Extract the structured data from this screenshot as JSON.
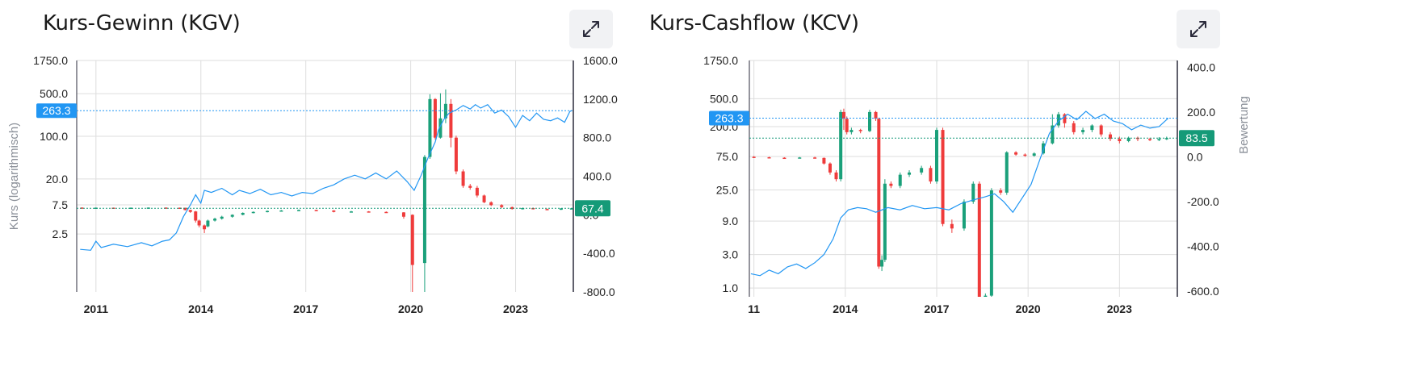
{
  "colors": {
    "up": "#1aa07a",
    "down": "#ef3b3b",
    "valuation_line": "#2196f3",
    "price_badge": "#2196f3",
    "valuation_badge": "#159a78",
    "grid": "#dedede",
    "axis": "#2b2b3b"
  },
  "icons": {
    "expand": "expand-arrows-icon"
  },
  "chart_data": [
    {
      "panel_title": "Kurs-Gewinn (KGV)",
      "type": "candlestick+line",
      "left_axis_title": "Kurs (logarithmisch)",
      "right_axis_title": "",
      "left_scale": "log",
      "left_ticks": [
        "1750.0",
        "500.0",
        "100.0",
        "20.0",
        "7.5",
        "2.5"
      ],
      "left_tick_values": [
        1750,
        500,
        100,
        20,
        7.5,
        2.5
      ],
      "left_range": [
        0.28,
        1750
      ],
      "right_ticks": [
        "1600.0",
        "1200.0",
        "800.0",
        "400.0",
        "0.0",
        "-400.0",
        "-800.0"
      ],
      "right_tick_values": [
        1600,
        1200,
        800,
        400,
        0,
        -400,
        -800
      ],
      "right_range": [
        -800,
        1600
      ],
      "x_ticks": [
        "2011",
        "2014",
        "2017",
        "2020",
        "2023"
      ],
      "x_tick_values": [
        2011,
        2014,
        2017,
        2020,
        2023
      ],
      "x_range": [
        2010.45,
        2024.65
      ],
      "price_badge": "263.3",
      "price_level": 263.3,
      "valuation_badge": "67.4",
      "valuation_level": 67.4,
      "price_series": [
        [
          2010.55,
          1.4
        ],
        [
          2010.85,
          1.35
        ],
        [
          2011.0,
          1.9
        ],
        [
          2011.15,
          1.5
        ],
        [
          2011.5,
          1.7
        ],
        [
          2011.9,
          1.55
        ],
        [
          2012.3,
          1.8
        ],
        [
          2012.6,
          1.6
        ],
        [
          2012.9,
          1.9
        ],
        [
          2013.1,
          2.0
        ],
        [
          2013.3,
          2.6
        ],
        [
          2013.5,
          4.8
        ],
        [
          2013.7,
          7.5
        ],
        [
          2013.85,
          11
        ],
        [
          2014.0,
          8
        ],
        [
          2014.1,
          13
        ],
        [
          2014.3,
          12
        ],
        [
          2014.6,
          14
        ],
        [
          2014.9,
          11
        ],
        [
          2015.1,
          13
        ],
        [
          2015.4,
          11.5
        ],
        [
          2015.7,
          13.5
        ],
        [
          2016.0,
          11
        ],
        [
          2016.3,
          12
        ],
        [
          2016.6,
          10.5
        ],
        [
          2016.9,
          12
        ],
        [
          2017.2,
          11.5
        ],
        [
          2017.5,
          14
        ],
        [
          2017.8,
          16
        ],
        [
          2018.1,
          20
        ],
        [
          2018.4,
          23
        ],
        [
          2018.7,
          20
        ],
        [
          2019.0,
          25
        ],
        [
          2019.3,
          20
        ],
        [
          2019.6,
          27
        ],
        [
          2019.9,
          18
        ],
        [
          2020.1,
          13
        ],
        [
          2020.3,
          23
        ],
        [
          2020.5,
          45
        ],
        [
          2020.7,
          80
        ],
        [
          2020.8,
          130
        ],
        [
          2020.95,
          190
        ],
        [
          2021.1,
          240
        ],
        [
          2021.3,
          270
        ],
        [
          2021.5,
          320
        ],
        [
          2021.7,
          280
        ],
        [
          2021.85,
          330
        ],
        [
          2022.0,
          290
        ],
        [
          2022.2,
          330
        ],
        [
          2022.4,
          240
        ],
        [
          2022.6,
          270
        ],
        [
          2022.8,
          210
        ],
        [
          2023.0,
          140
        ],
        [
          2023.2,
          220
        ],
        [
          2023.4,
          180
        ],
        [
          2023.6,
          240
        ],
        [
          2023.8,
          190
        ],
        [
          2024.0,
          180
        ],
        [
          2024.2,
          200
        ],
        [
          2024.4,
          170
        ],
        [
          2024.55,
          255
        ],
        [
          2024.6,
          263
        ]
      ],
      "valuation_candles": [
        [
          2010.6,
          75,
          72,
          77,
          71
        ],
        [
          2011.0,
          72,
          74,
          76,
          70
        ],
        [
          2011.5,
          74,
          73,
          75,
          72
        ],
        [
          2012.0,
          73,
          74,
          75,
          72
        ],
        [
          2012.5,
          74,
          75,
          76,
          73
        ],
        [
          2013.0,
          75,
          74,
          76,
          73
        ],
        [
          2013.4,
          74,
          73,
          75,
          72
        ],
        [
          2013.55,
          73,
          50,
          74,
          45
        ],
        [
          2013.7,
          50,
          30,
          52,
          20
        ],
        [
          2013.85,
          35,
          -60,
          40,
          -80
        ],
        [
          2013.95,
          -60,
          -110,
          -50,
          -130
        ],
        [
          2014.1,
          -110,
          -150,
          -100,
          -190
        ],
        [
          2014.2,
          -120,
          -60,
          -50,
          -130
        ],
        [
          2014.4,
          -60,
          -40,
          -30,
          -70
        ],
        [
          2014.6,
          -40,
          -20,
          -10,
          -50
        ],
        [
          2014.9,
          -20,
          0,
          5,
          -30
        ],
        [
          2015.2,
          0,
          20,
          25,
          -5
        ],
        [
          2015.5,
          20,
          30,
          35,
          15
        ],
        [
          2015.9,
          30,
          40,
          45,
          25
        ],
        [
          2016.3,
          40,
          45,
          50,
          38
        ],
        [
          2016.8,
          45,
          50,
          55,
          42
        ],
        [
          2017.3,
          50,
          45,
          52,
          40
        ],
        [
          2017.8,
          45,
          30,
          48,
          25
        ],
        [
          2018.3,
          30,
          35,
          40,
          25
        ],
        [
          2018.8,
          35,
          30,
          38,
          28
        ],
        [
          2019.3,
          30,
          25,
          35,
          20
        ],
        [
          2019.8,
          25,
          -20,
          28,
          -40
        ],
        [
          2020.05,
          0,
          -520,
          5,
          -820
        ],
        [
          2020.4,
          -500,
          600,
          620,
          -820
        ],
        [
          2020.55,
          600,
          1200,
          1250,
          580
        ],
        [
          2020.7,
          1200,
          800,
          1210,
          780
        ],
        [
          2020.85,
          800,
          1000,
          1260,
          790
        ],
        [
          2021.0,
          1000,
          1150,
          1300,
          950
        ],
        [
          2021.15,
          1150,
          800,
          1200,
          700
        ],
        [
          2021.3,
          800,
          450,
          820,
          420
        ],
        [
          2021.5,
          450,
          300,
          470,
          280
        ],
        [
          2021.7,
          300,
          280,
          320,
          260
        ],
        [
          2021.9,
          280,
          200,
          300,
          180
        ],
        [
          2022.1,
          200,
          130,
          210,
          120
        ],
        [
          2022.3,
          130,
          100,
          140,
          90
        ],
        [
          2022.6,
          100,
          80,
          110,
          70
        ],
        [
          2022.9,
          80,
          60,
          85,
          55
        ],
        [
          2023.2,
          60,
          70,
          75,
          55
        ],
        [
          2023.5,
          70,
          60,
          75,
          55
        ],
        [
          2023.9,
          60,
          55,
          65,
          50
        ],
        [
          2024.3,
          55,
          65,
          70,
          50
        ],
        [
          2024.6,
          65,
          67,
          70,
          60
        ]
      ]
    },
    {
      "panel_title": "Kurs-Cashflow (KCV)",
      "type": "candlestick+line",
      "left_axis_title": "",
      "right_axis_title": "Bewertung",
      "left_scale": "log",
      "left_ticks": [
        "1750.0",
        "500.0",
        "200.0",
        "75.0",
        "25.0",
        "9.0",
        "3.0",
        "1.0"
      ],
      "left_tick_values": [
        1750,
        500,
        200,
        75,
        25,
        9,
        3,
        1
      ],
      "left_range": [
        0.75,
        1750
      ],
      "right_ticks": [
        "400.0",
        "200.0",
        "0.0",
        "-200.0",
        "-400.0",
        "-600.0"
      ],
      "right_tick_values": [
        400,
        200,
        0,
        -200,
        -400,
        -600
      ],
      "right_range": [
        -625,
        430
      ],
      "x_ticks": [
        "11",
        "2014",
        "2017",
        "2020",
        "2023"
      ],
      "x_tick_values": [
        2011,
        2014,
        2017,
        2020,
        2023
      ],
      "x_range": [
        2010.85,
        2024.9
      ],
      "price_badge": "263.3",
      "price_level": 263.3,
      "valuation_badge": "83.5",
      "valuation_level": 83.5,
      "price_series": [
        [
          2010.9,
          1.6
        ],
        [
          2011.2,
          1.5
        ],
        [
          2011.5,
          1.8
        ],
        [
          2011.8,
          1.6
        ],
        [
          2012.1,
          2.0
        ],
        [
          2012.4,
          2.2
        ],
        [
          2012.7,
          1.9
        ],
        [
          2013.0,
          2.3
        ],
        [
          2013.3,
          3.0
        ],
        [
          2013.6,
          5
        ],
        [
          2013.85,
          10
        ],
        [
          2014.1,
          13
        ],
        [
          2014.4,
          14
        ],
        [
          2014.7,
          13.5
        ],
        [
          2015.0,
          12
        ],
        [
          2015.4,
          14
        ],
        [
          2015.8,
          13
        ],
        [
          2016.2,
          15
        ],
        [
          2016.6,
          13.5
        ],
        [
          2017.0,
          14
        ],
        [
          2017.4,
          13
        ],
        [
          2017.8,
          16
        ],
        [
          2018.2,
          18
        ],
        [
          2018.6,
          20
        ],
        [
          2018.9,
          22
        ],
        [
          2019.2,
          17
        ],
        [
          2019.5,
          12
        ],
        [
          2019.8,
          19
        ],
        [
          2020.1,
          30
        ],
        [
          2020.4,
          70
        ],
        [
          2020.7,
          160
        ],
        [
          2021.0,
          240
        ],
        [
          2021.3,
          300
        ],
        [
          2021.6,
          250
        ],
        [
          2021.9,
          330
        ],
        [
          2022.2,
          260
        ],
        [
          2022.5,
          300
        ],
        [
          2022.8,
          240
        ],
        [
          2023.1,
          220
        ],
        [
          2023.4,
          180
        ],
        [
          2023.7,
          210
        ],
        [
          2024.0,
          190
        ],
        [
          2024.3,
          200
        ],
        [
          2024.6,
          263
        ]
      ],
      "valuation_candles": [
        [
          2011.0,
          0,
          -2,
          3,
          -4
        ],
        [
          2011.5,
          -2,
          -4,
          0,
          -6
        ],
        [
          2012.0,
          -4,
          -5,
          -2,
          -7
        ],
        [
          2012.5,
          -5,
          -3,
          -1,
          -6
        ],
        [
          2013.0,
          -3,
          -5,
          0,
          -7
        ],
        [
          2013.3,
          -5,
          -30,
          -3,
          -35
        ],
        [
          2013.5,
          -30,
          -70,
          -25,
          -80
        ],
        [
          2013.7,
          -70,
          -100,
          -60,
          -110
        ],
        [
          2013.85,
          -100,
          200,
          210,
          -110
        ],
        [
          2013.95,
          200,
          170,
          215,
          120
        ],
        [
          2014.05,
          170,
          110,
          180,
          100
        ],
        [
          2014.2,
          110,
          120,
          130,
          100
        ],
        [
          2014.5,
          120,
          115,
          125,
          105
        ],
        [
          2014.8,
          115,
          200,
          210,
          110
        ],
        [
          2015.0,
          200,
          170,
          205,
          160
        ],
        [
          2015.1,
          170,
          -490,
          175,
          -500
        ],
        [
          2015.2,
          -490,
          -460,
          -440,
          -510
        ],
        [
          2015.3,
          -460,
          -120,
          -100,
          -470
        ],
        [
          2015.5,
          -120,
          -130,
          -110,
          -140
        ],
        [
          2015.8,
          -130,
          -80,
          -70,
          -140
        ],
        [
          2016.1,
          -80,
          -70,
          -60,
          -90
        ],
        [
          2016.5,
          -70,
          -50,
          -40,
          -80
        ],
        [
          2016.8,
          -50,
          -110,
          -40,
          -120
        ],
        [
          2017.0,
          -110,
          120,
          130,
          -120
        ],
        [
          2017.2,
          120,
          -300,
          130,
          -310
        ],
        [
          2017.5,
          -300,
          -320,
          -280,
          -340
        ],
        [
          2017.9,
          -320,
          -200,
          -190,
          -330
        ],
        [
          2018.2,
          -200,
          -120,
          -110,
          -210
        ],
        [
          2018.4,
          -120,
          -630,
          -110,
          -640
        ],
        [
          2018.6,
          -630,
          -620,
          -610,
          -640
        ],
        [
          2018.8,
          -620,
          -150,
          -140,
          -630
        ],
        [
          2019.1,
          -150,
          -160,
          -140,
          -170
        ],
        [
          2019.3,
          -160,
          20,
          25,
          -170
        ],
        [
          2019.6,
          20,
          10,
          25,
          5
        ],
        [
          2019.9,
          10,
          5,
          15,
          0
        ],
        [
          2020.2,
          5,
          15,
          20,
          0
        ],
        [
          2020.5,
          15,
          60,
          70,
          10
        ],
        [
          2020.8,
          60,
          140,
          190,
          55
        ],
        [
          2021.0,
          140,
          190,
          200,
          130
        ],
        [
          2021.2,
          190,
          150,
          195,
          130
        ],
        [
          2021.5,
          150,
          110,
          160,
          100
        ],
        [
          2021.8,
          110,
          120,
          130,
          100
        ],
        [
          2022.1,
          120,
          140,
          145,
          110
        ],
        [
          2022.4,
          140,
          100,
          145,
          90
        ],
        [
          2022.7,
          100,
          80,
          110,
          70
        ],
        [
          2023.0,
          80,
          70,
          90,
          60
        ],
        [
          2023.3,
          70,
          85,
          90,
          65
        ],
        [
          2023.6,
          85,
          80,
          90,
          70
        ],
        [
          2024.0,
          80,
          75,
          85,
          70
        ],
        [
          2024.3,
          75,
          80,
          88,
          70
        ],
        [
          2024.55,
          80,
          83.5,
          90,
          75
        ]
      ]
    }
  ]
}
